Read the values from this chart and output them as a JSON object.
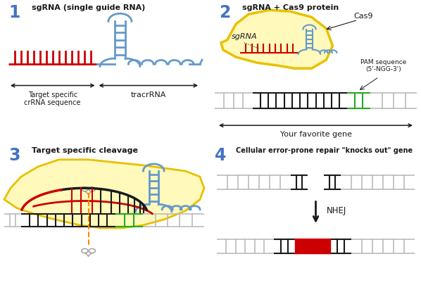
{
  "bg_color": "#ffffff",
  "blue_num": "#4472C4",
  "black": "#1a1a1a",
  "red": "#cc0000",
  "blue": "#6699cc",
  "green": "#22aa22",
  "gray": "#bbbbbb",
  "gray_dark": "#999999",
  "yellow_fill": "#fff9bb",
  "yellow_edge": "#e8c000",
  "scissors_color": "#999999",
  "orange_dash": "#ff8800",
  "panel1_title": "sgRNA (single guide RNA)",
  "panel2_title": "sgRNA + Cas9 protein",
  "panel3_title": "Target specific cleavage",
  "panel4_title": "Cellular error-prone repair \"knocks out\" gene",
  "label_crRNA": "Target specific\ncrRNA sequence",
  "label_tracrRNA": "tracrRNA",
  "label_cas9": "Cas9",
  "label_sgRNA": "sgRNA",
  "label_PAM": "PAM sequence\n(5'-NGG-3')",
  "label_gene": "Your favorite gene",
  "label_NHEJ": "NHEJ"
}
